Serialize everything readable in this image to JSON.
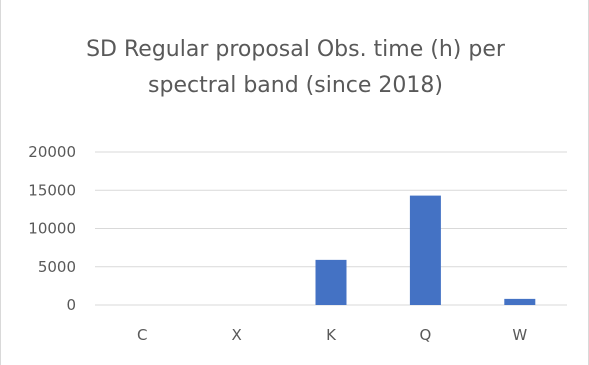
{
  "chart_data": {
    "type": "bar",
    "title_lines": [
      "SD Regular proposal Obs. time (h) per",
      "spectral band (since 2018)"
    ],
    "categories": [
      "C",
      "X",
      "K",
      "Q",
      "W"
    ],
    "values": [
      0,
      0,
      5900,
      14300,
      800
    ],
    "ylim": [
      0,
      20000
    ],
    "yticks": [
      0,
      5000,
      10000,
      15000,
      20000
    ],
    "xlabel": "",
    "ylabel": "",
    "grid": true,
    "bar_color": "#4472c4",
    "grid_color": "#d9d9d9"
  }
}
